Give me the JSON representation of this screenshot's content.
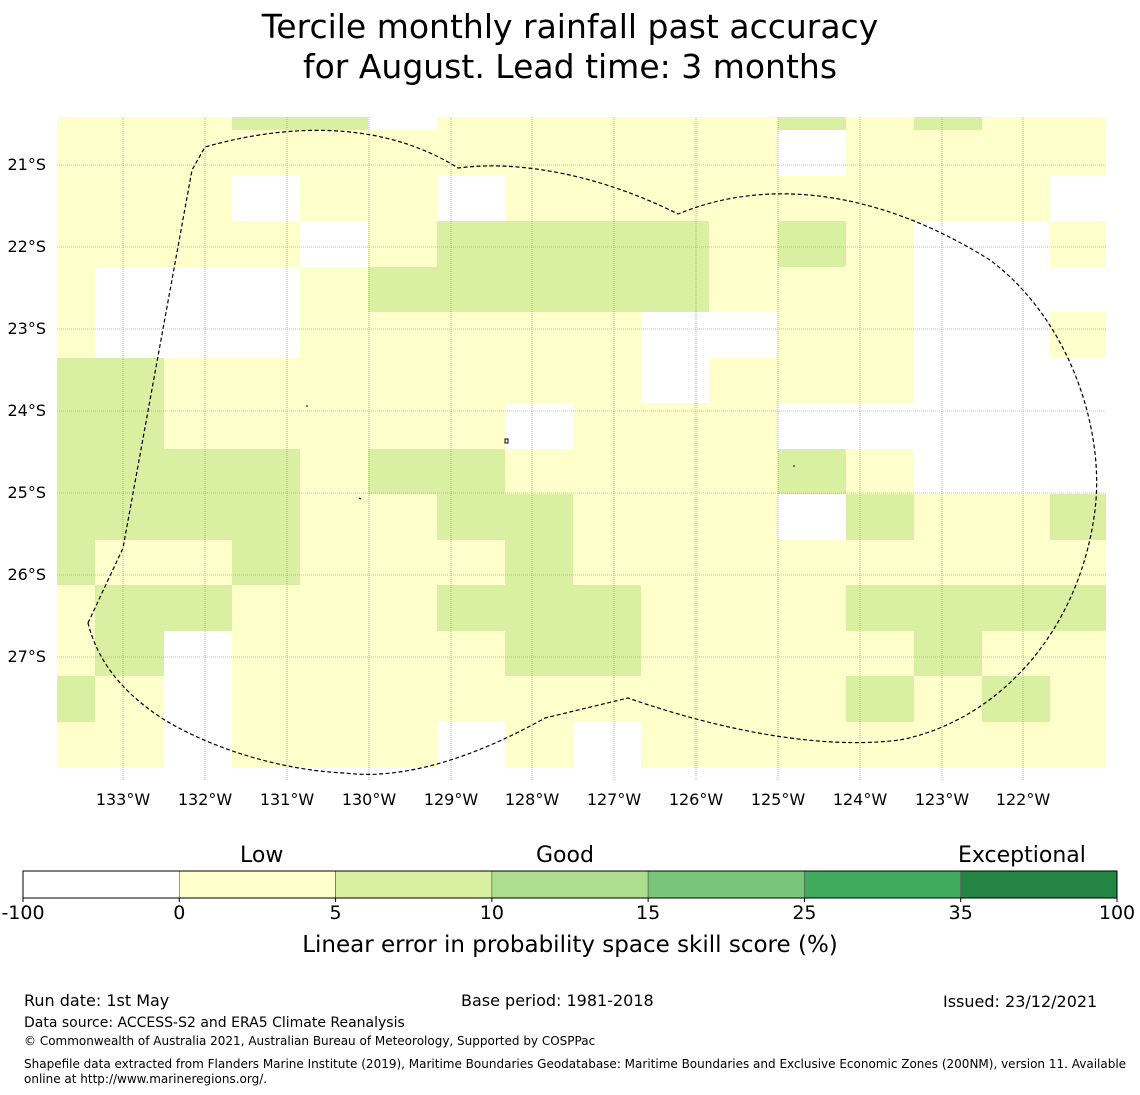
{
  "title": {
    "line1": "Tercile monthly rainfall past accuracy",
    "line2": "for August. Lead time: 3 months"
  },
  "map": {
    "lat_labels": [
      "21°S",
      "22°S",
      "23°S",
      "24°S",
      "25°S",
      "26°S",
      "27°S"
    ],
    "lon_labels": [
      "133°W",
      "132°W",
      "131°W",
      "130°W",
      "129°W",
      "128°W",
      "127°W",
      "126°W",
      "125°W",
      "124°W",
      "123°W",
      "122°W"
    ],
    "colors": {
      "neg": "#ffffff",
      "c0_5": "#ffffcc",
      "c5_10": "#d9f0a3",
      "c10_15": "#addd8e",
      "c15_25": "#78c679",
      "c25_35": "#41ab5d",
      "c35_100": "#238443"
    },
    "grid_legend": "0 = below 0, 1 = 0-5, 2 = 5-10 (rows north to south, columns west to east)",
    "grid": [
      "1112201111121211",
      "1111111111101111",
      "1110110111111110",
      "1111012222121001",
      "1000122222111000",
      "1000111110011001",
      "2211111110111000",
      "2211111011100000",
      "2222122111121000",
      "2222112211102112",
      "2112111211111111",
      "1221112221112222",
      "1201111221111211",
      "2101111111112121",
      "1101110101111111"
    ]
  },
  "colorbar": {
    "categories": [
      "Low",
      "Good",
      "Exceptional"
    ],
    "ticks": [
      "-100",
      "0",
      "5",
      "10",
      "15",
      "25",
      "35",
      "100"
    ],
    "colors": [
      "#ffffff",
      "#ffffcc",
      "#d9f0a3",
      "#addd8e",
      "#78c679",
      "#41ab5d",
      "#238443"
    ],
    "label": "Linear error in probability space skill score (%)"
  },
  "footer": {
    "run_date": "Run date: 1st May",
    "base_period": "Base period: 1981-2018",
    "issued": "Issued: 23/12/2021",
    "data_source": "Data source: ACCESS-S2 and ERA5 Climate Reanalysis",
    "copyright": "© Commonwealth of Australia 2021, Australian Bureau of Meteorology, Supported by COSPPac",
    "shapefile_line1": "Shapefile data extracted from Flanders Marine Institute (2019), Maritime Boundaries Geodatabase: Maritime Boundaries and Exclusive Economic Zones (200NM), version 11. Available",
    "shapefile_line2": "online at http://www.marineregions.org/."
  }
}
